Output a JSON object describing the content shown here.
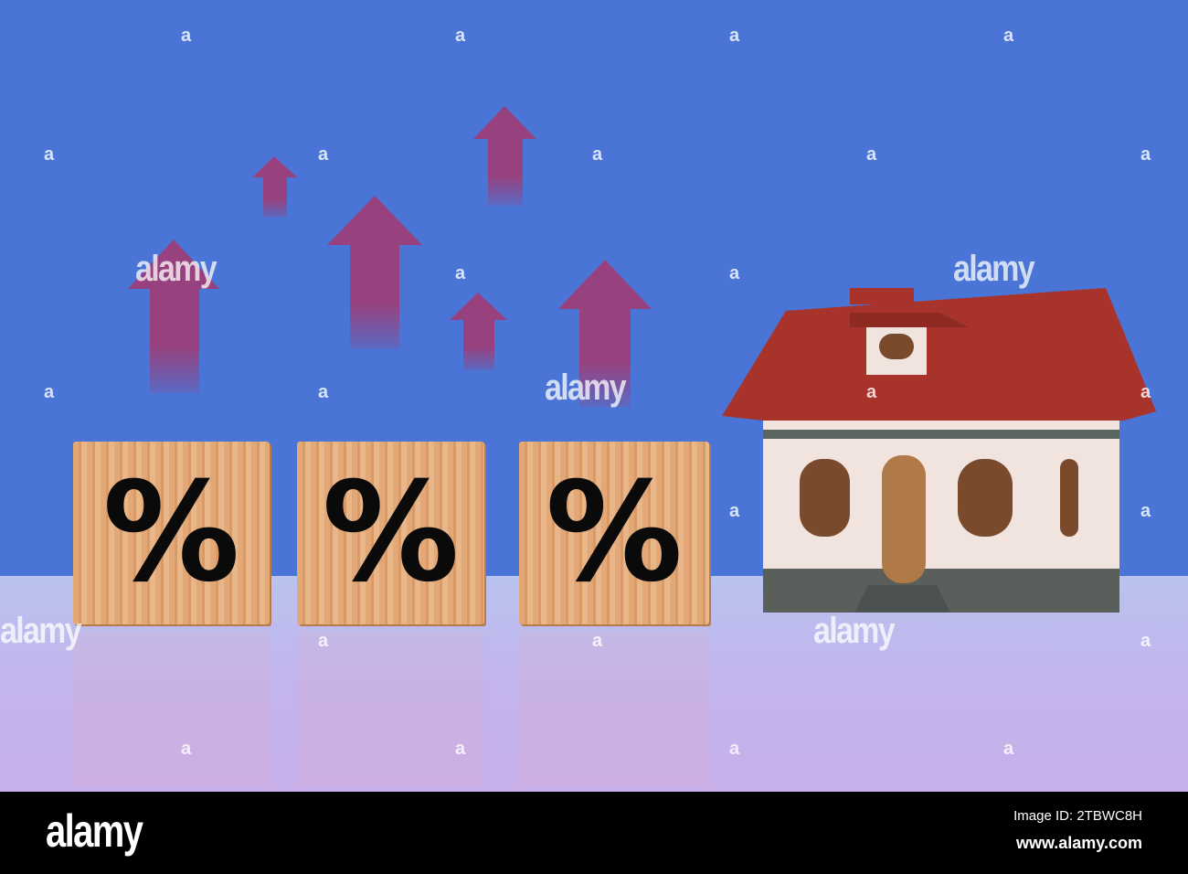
{
  "image": {
    "description_colors": {
      "background": "#4a74d6",
      "arrows": "#9b3f7a",
      "roof": "#a8332a",
      "walls": "#f1e4de"
    },
    "block_symbols": [
      "%",
      "%",
      "%"
    ],
    "watermark": "alamy",
    "watermark_small": "a"
  },
  "footer": {
    "logo": "alamy",
    "image_id": "Image ID: 2TBWC8H",
    "website": "www.alamy.com"
  }
}
